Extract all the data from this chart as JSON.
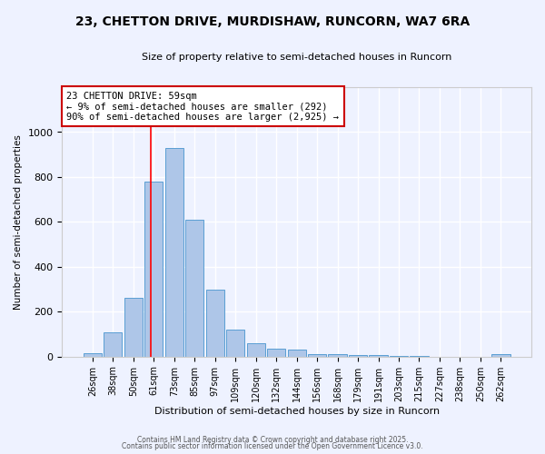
{
  "title1": "23, CHETTON DRIVE, MURDISHAW, RUNCORN, WA7 6RA",
  "title2": "Size of property relative to semi-detached houses in Runcorn",
  "xlabel": "Distribution of semi-detached houses by size in Runcorn",
  "ylabel": "Number of semi-detached properties",
  "bins": [
    "26sqm",
    "38sqm",
    "50sqm",
    "61sqm",
    "73sqm",
    "85sqm",
    "97sqm",
    "109sqm",
    "120sqm",
    "132sqm",
    "144sqm",
    "156sqm",
    "168sqm",
    "179sqm",
    "191sqm",
    "203sqm",
    "215sqm",
    "227sqm",
    "238sqm",
    "250sqm",
    "262sqm"
  ],
  "values": [
    15,
    110,
    260,
    780,
    930,
    610,
    300,
    120,
    60,
    35,
    30,
    10,
    10,
    5,
    5,
    2,
    2,
    0,
    0,
    0,
    10
  ],
  "bar_color": "#aec6e8",
  "bar_edge_color": "#5a9fd4",
  "red_line_x": 2.85,
  "annotation_line1": "23 CHETTON DRIVE: 59sqm",
  "annotation_line2": "← 9% of semi-detached houses are smaller (292)",
  "annotation_line3": "90% of semi-detached houses are larger (2,925) →",
  "annotation_box_color": "#ffffff",
  "annotation_box_edge": "#cc0000",
  "background_color": "#eef2ff",
  "grid_color": "#ffffff",
  "ylim": [
    0,
    1200
  ],
  "yticks": [
    0,
    200,
    400,
    600,
    800,
    1000
  ],
  "footer_line1": "Contains HM Land Registry data © Crown copyright and database right 2025.",
  "footer_line2": "Contains public sector information licensed under the Open Government Licence v3.0."
}
